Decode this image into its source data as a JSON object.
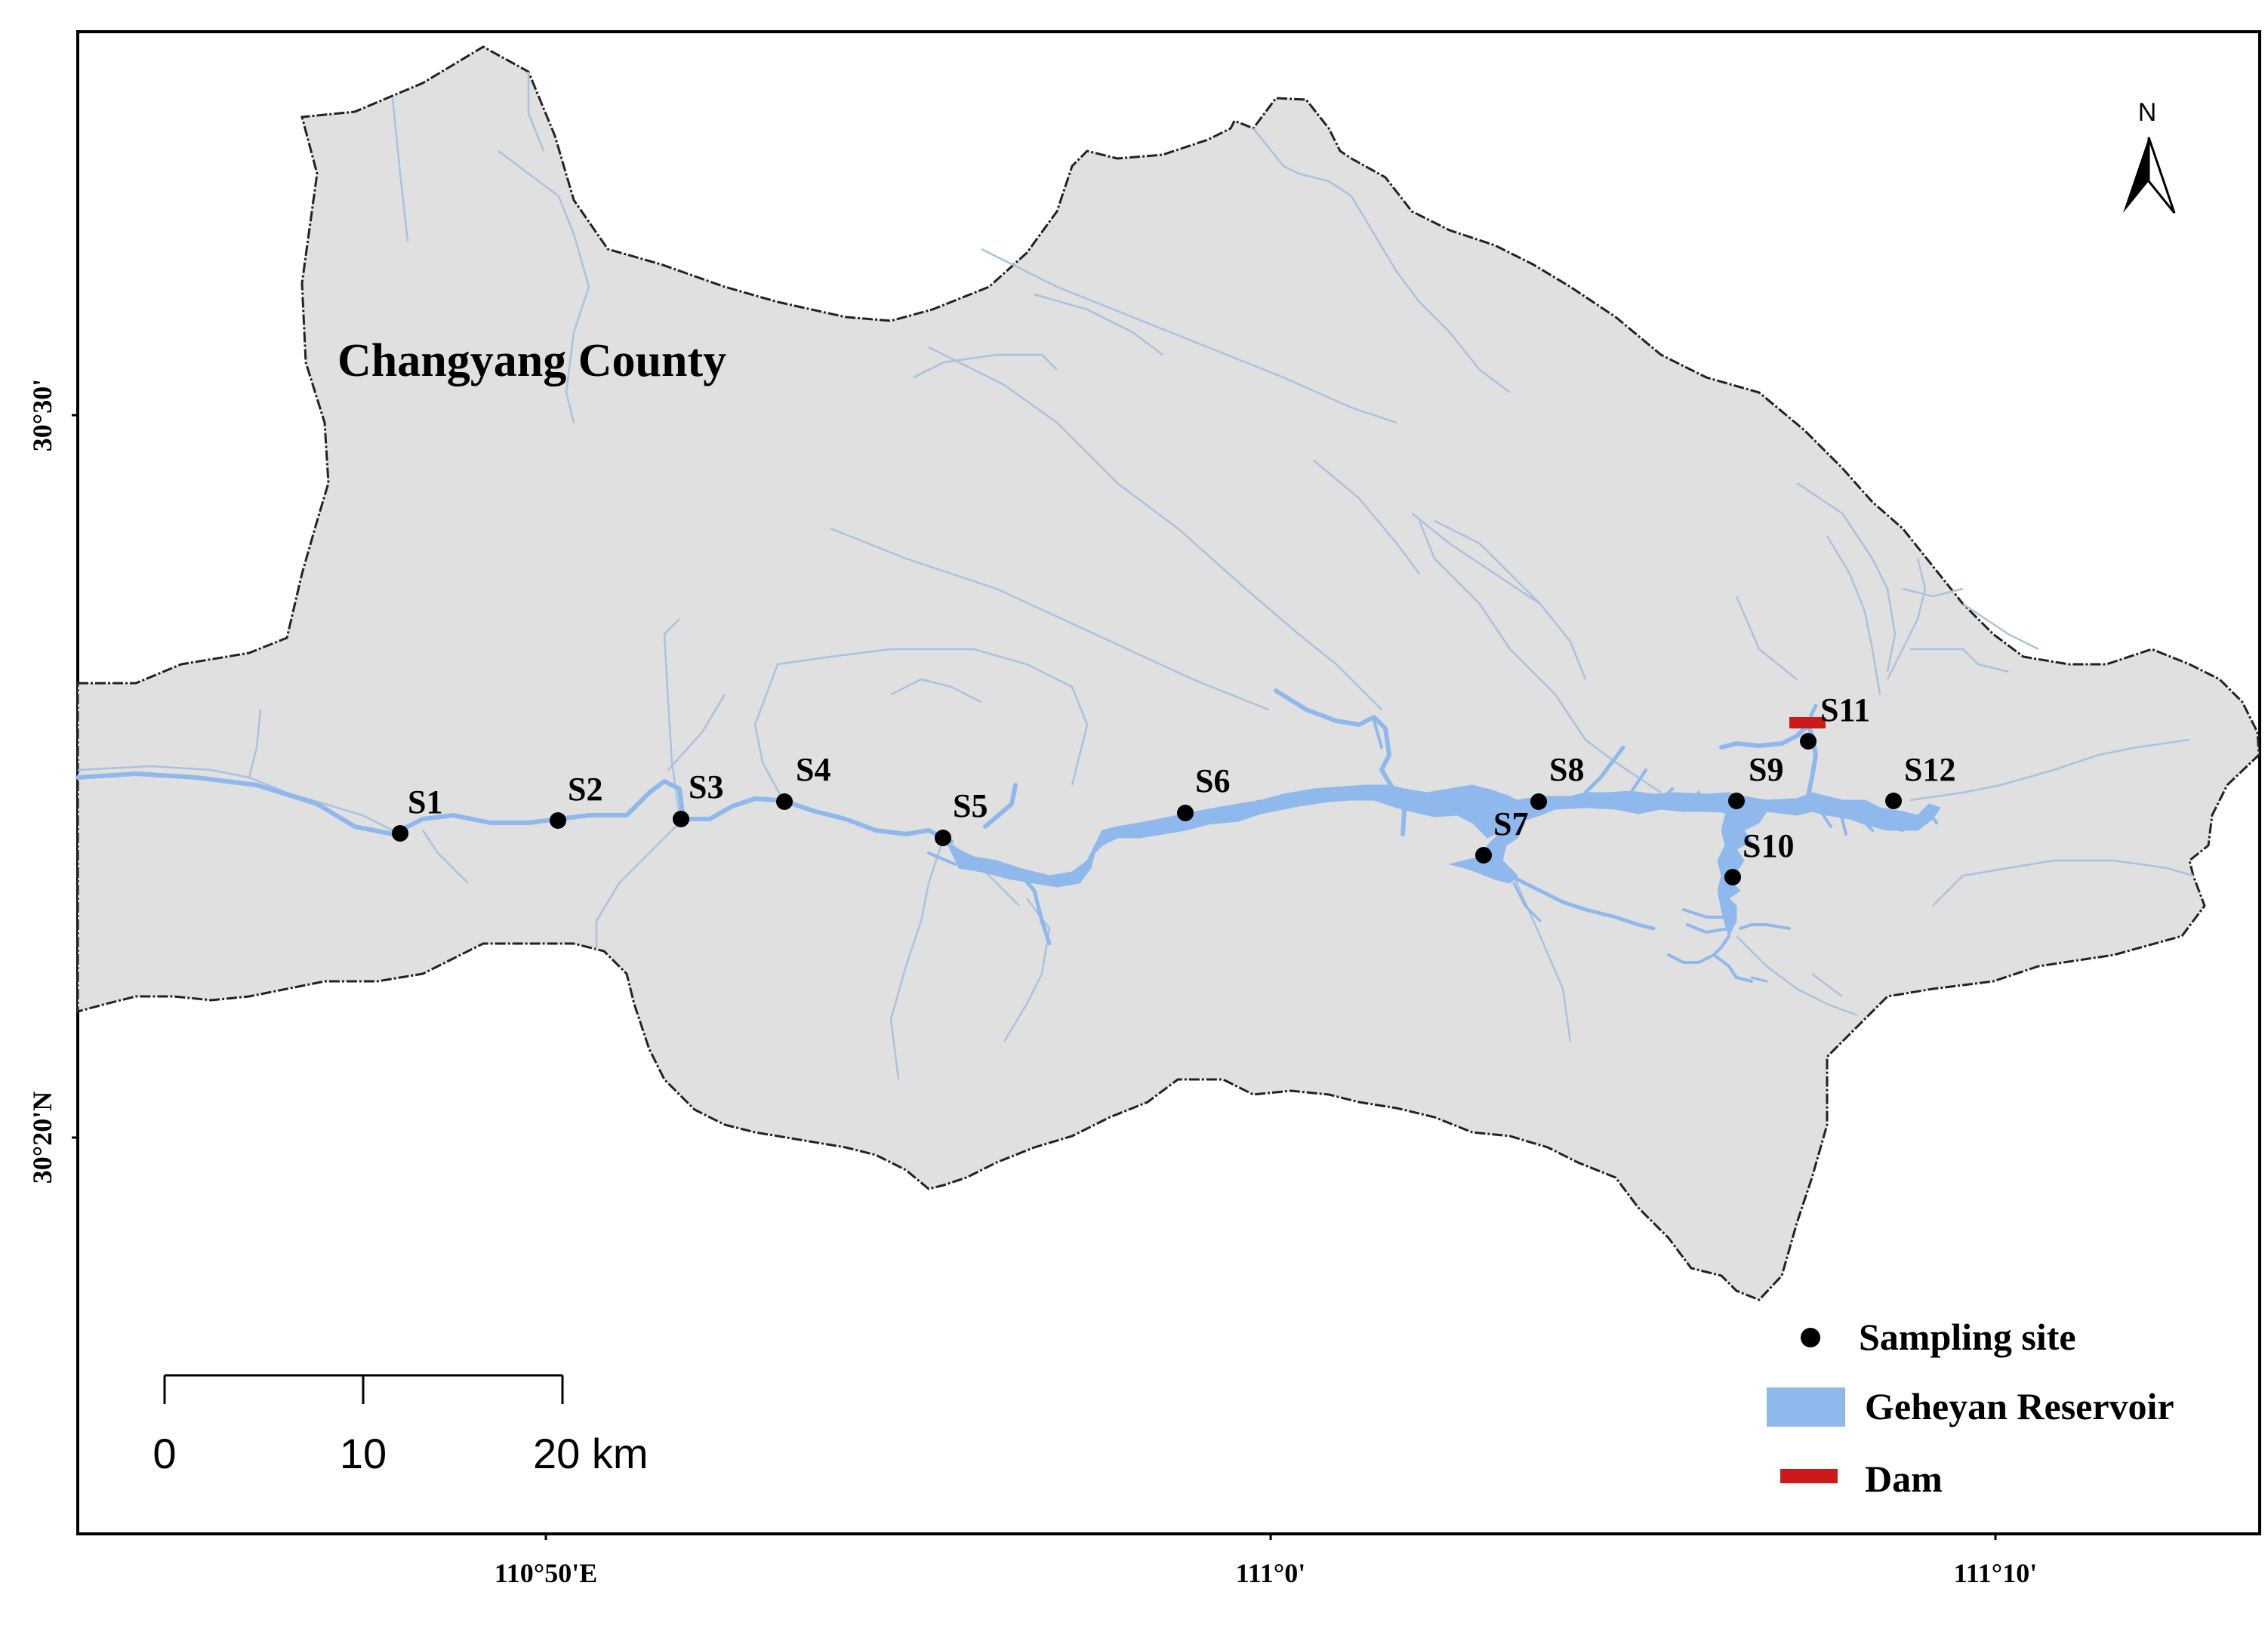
{
  "map": {
    "region_label": "Changyang County",
    "north_arrow": "N",
    "latitude_ticks": [
      "30°30'",
      "30°20'N"
    ],
    "longitude_ticks": [
      "110°50'E",
      "111°0'",
      "111°10'"
    ],
    "scale_bar": {
      "labels": [
        "0",
        "10",
        "20 km"
      ]
    },
    "sites": [
      "S1",
      "S2",
      "S3",
      "S4",
      "S5",
      "S6",
      "S7",
      "S8",
      "S9",
      "S10",
      "S11",
      "S12"
    ],
    "legend": [
      {
        "symbol": "dot",
        "label": "Sampling site",
        "color": "#000000"
      },
      {
        "symbol": "patch",
        "label": "Geheyan Reservoir",
        "color": "#8fb8ec"
      },
      {
        "symbol": "bar",
        "label": "Dam",
        "color": "#cc1a1a"
      }
    ],
    "colors": {
      "land": "#e0e0e0",
      "land_outline": "#222222",
      "reservoir": "#8fb8ec",
      "streams": "#a9c2e0",
      "dam": "#cc1a1a",
      "site": "#000000"
    }
  }
}
